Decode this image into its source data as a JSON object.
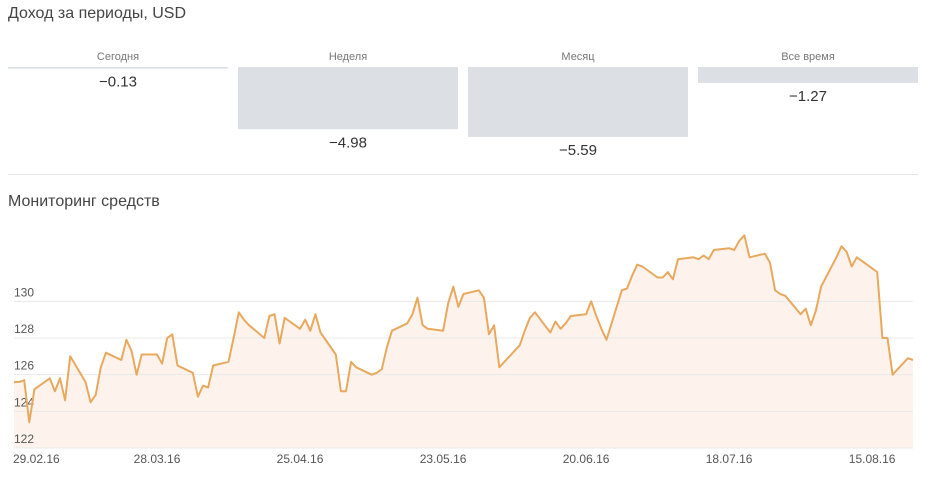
{
  "chart_data": [
    {
      "type": "bar",
      "title": "Доход за периоды, USD",
      "categories": [
        "Сегодня",
        "Неделя",
        "Месяц",
        "Все время"
      ],
      "values": [
        -0.13,
        -4.98,
        -5.59,
        -1.27
      ],
      "value_labels": [
        "−0.13",
        "−4.98",
        "−5.59",
        "−1.27"
      ],
      "color": "#dcdfe3",
      "ylim": [
        -6,
        0
      ]
    },
    {
      "type": "line",
      "title": "Мониторинг средств",
      "x": [
        "29.02.16",
        "01.03.16",
        "02.03.16",
        "03.03.16",
        "04.03.16",
        "07.03.16",
        "08.03.16",
        "09.03.16",
        "10.03.16",
        "11.03.16",
        "14.03.16",
        "15.03.16",
        "16.03.16",
        "17.03.16",
        "18.03.16",
        "21.03.16",
        "22.03.16",
        "23.03.16",
        "24.03.16",
        "25.03.16",
        "28.03.16",
        "29.03.16",
        "30.03.16",
        "31.03.16",
        "01.04.16",
        "04.04.16",
        "05.04.16",
        "06.04.16",
        "07.04.16",
        "08.04.16",
        "11.04.16",
        "12.04.16",
        "13.04.16",
        "14.04.16",
        "15.04.16",
        "18.04.16",
        "19.04.16",
        "20.04.16",
        "21.04.16",
        "22.04.16",
        "25.04.16",
        "26.04.16",
        "27.04.16",
        "28.04.16",
        "29.04.16",
        "02.05.16",
        "03.05.16",
        "04.05.16",
        "05.05.16",
        "06.05.16",
        "09.05.16",
        "10.05.16",
        "11.05.16",
        "12.05.16",
        "13.05.16",
        "16.05.16",
        "17.05.16",
        "18.05.16",
        "19.05.16",
        "20.05.16",
        "23.05.16",
        "24.05.16",
        "25.05.16",
        "26.05.16",
        "27.05.16",
        "30.05.16",
        "31.05.16",
        "01.06.16",
        "02.06.16",
        "03.06.16",
        "06.06.16",
        "07.06.16",
        "08.06.16",
        "09.06.16",
        "10.06.16",
        "13.06.16",
        "14.06.16",
        "15.06.16",
        "16.06.16",
        "17.06.16",
        "20.06.16",
        "21.06.16",
        "22.06.16",
        "23.06.16",
        "24.06.16",
        "27.06.16",
        "28.06.16",
        "29.06.16",
        "30.06.16",
        "01.07.16",
        "04.07.16",
        "05.07.16",
        "06.07.16",
        "07.07.16",
        "08.07.16",
        "11.07.16",
        "12.07.16",
        "13.07.16",
        "14.07.16",
        "15.07.16",
        "18.07.16",
        "19.07.16",
        "20.07.16",
        "21.07.16",
        "22.07.16",
        "25.07.16",
        "26.07.16",
        "27.07.16",
        "28.07.16",
        "29.07.16",
        "01.08.16",
        "02.08.16",
        "03.08.16",
        "04.08.16",
        "05.08.16",
        "08.08.16",
        "09.08.16",
        "10.08.16",
        "11.08.16",
        "12.08.16",
        "15.08.16",
        "16.08.16",
        "17.08.16",
        "18.08.16",
        "19.08.16",
        "22.08.16",
        "23.08.16"
      ],
      "series": [
        {
          "color": "#e8a95e",
          "fill": "#fdf3ec",
          "values": [
            125.6,
            125.6,
            125.7,
            123.4,
            125.2,
            125.8,
            125.1,
            125.8,
            124.6,
            127.0,
            125.6,
            124.5,
            124.9,
            126.4,
            127.2,
            126.8,
            127.9,
            127.3,
            126.0,
            127.1,
            127.1,
            126.6,
            128.0,
            128.2,
            126.5,
            126.1,
            124.8,
            125.4,
            125.3,
            126.5,
            126.7,
            128.0,
            129.4,
            129.0,
            128.7,
            128.0,
            129.2,
            129.3,
            127.7,
            129.1,
            128.5,
            129.0,
            128.4,
            129.3,
            128.3,
            127.1,
            125.1,
            125.1,
            126.7,
            126.4,
            126.0,
            126.1,
            126.3,
            127.5,
            128.4,
            128.8,
            129.3,
            130.2,
            128.7,
            128.5,
            128.4,
            129.9,
            130.8,
            129.7,
            130.4,
            130.6,
            130.2,
            128.2,
            128.7,
            126.4,
            127.3,
            127.6,
            128.4,
            129.1,
            129.4,
            128.3,
            128.9,
            128.5,
            128.8,
            129.2,
            129.3,
            130.0,
            129.2,
            128.5,
            127.9,
            130.6,
            130.7,
            131.4,
            132.0,
            131.9,
            131.3,
            131.3,
            131.6,
            131.2,
            132.3,
            132.4,
            132.3,
            132.5,
            132.3,
            132.8,
            132.9,
            132.8,
            133.3,
            133.6,
            132.4,
            132.6,
            132.1,
            130.6,
            130.4,
            130.3,
            129.3,
            129.6,
            128.7,
            129.5,
            130.8,
            132.4,
            133.0,
            132.7,
            131.9,
            132.4,
            131.8,
            131.6,
            128.0,
            128.0,
            126.0,
            126.9,
            126.8
          ]
        }
      ],
      "xlim": [
        "29.02.16",
        "23.08.16"
      ],
      "xticks": [
        "29.02.16",
        "28.03.16",
        "25.04.16",
        "23.05.16",
        "20.06.16",
        "18.07.16",
        "15.08.16"
      ],
      "ylim": [
        122,
        134
      ],
      "yticks": [
        122,
        124,
        126,
        128,
        130
      ],
      "grid": true
    }
  ]
}
